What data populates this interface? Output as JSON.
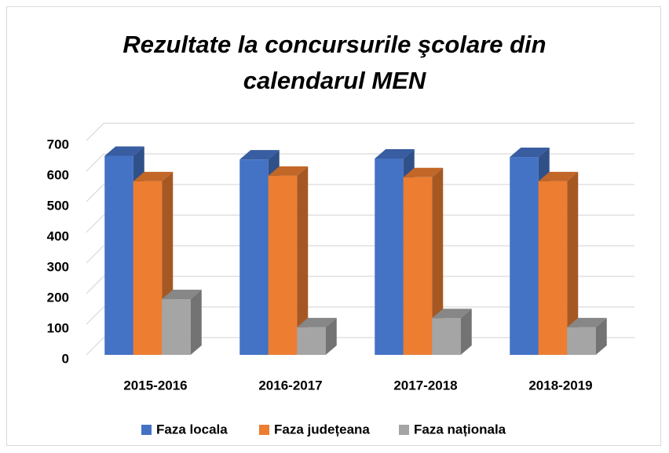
{
  "chart_data": {
    "type": "bar3d",
    "title": "Rezultate la concursurile şcolare din calendarul MEN",
    "categories": [
      "2015-2016",
      "2016-2017",
      "2017-2018",
      "2018-2019"
    ],
    "series": [
      {
        "name": "Faza locala",
        "color": "#4472c4",
        "values": [
          650,
          638,
          641,
          646
        ]
      },
      {
        "name": "Faza județeana",
        "color": "#ed7d31",
        "values": [
          567,
          585,
          580,
          567
        ]
      },
      {
        "name": "Faza naționala",
        "color": "#a5a5a5",
        "values": [
          182,
          90,
          120,
          90
        ]
      }
    ],
    "ylim": [
      0,
      700
    ],
    "yticks": [
      0,
      100,
      200,
      300,
      400,
      500,
      600,
      700
    ],
    "grid": true,
    "legend": "bottom"
  }
}
